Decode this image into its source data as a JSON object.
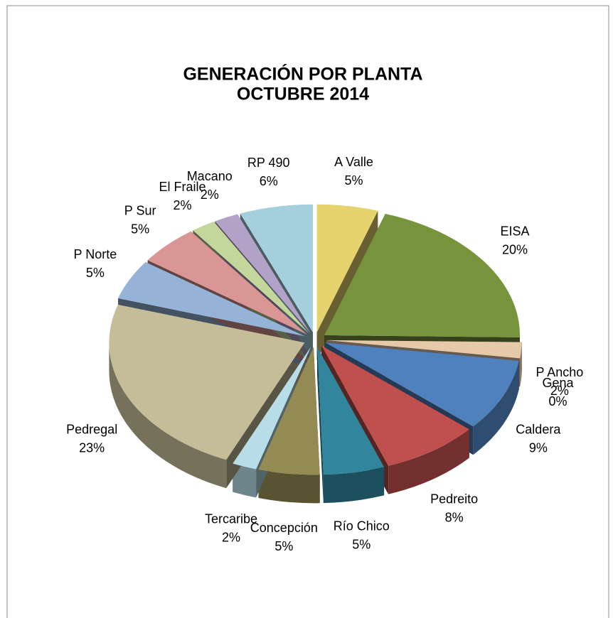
{
  "chart_data": {
    "type": "pie",
    "title": "GENERACIÓN  POR  PLANTA",
    "subtitle": "OCTUBRE 2014",
    "categories": [
      "A Valle",
      "EISA",
      "P Ancho",
      "Gena",
      "Caldera",
      "Pedreito",
      "Río Chico",
      "Concepción",
      "Tercaribe",
      "Pedregal",
      "P Norte",
      "P Sur",
      "El Fraile",
      "Macano",
      "RP 490"
    ],
    "values": [
      5,
      20,
      2,
      0,
      9,
      8,
      5,
      5,
      2,
      23,
      5,
      5,
      2,
      2,
      6
    ],
    "value_labels": [
      "5%",
      "20%",
      "2%",
      "0%",
      "9%",
      "8%",
      "5%",
      "5%",
      "2%",
      "23%",
      "5%",
      "5%",
      "2%",
      "2%",
      "6%"
    ],
    "colors": [
      "#e6d36e",
      "#77933c",
      "#e6c9a8",
      "#7f3f1f",
      "#4f81bd",
      "#c0504d",
      "#31859c",
      "#948a54",
      "#b7dde8",
      "#c4bd97",
      "#95b3d7",
      "#d99694",
      "#c3d69b",
      "#b3a2c7",
      "#a5cfdc"
    ]
  }
}
